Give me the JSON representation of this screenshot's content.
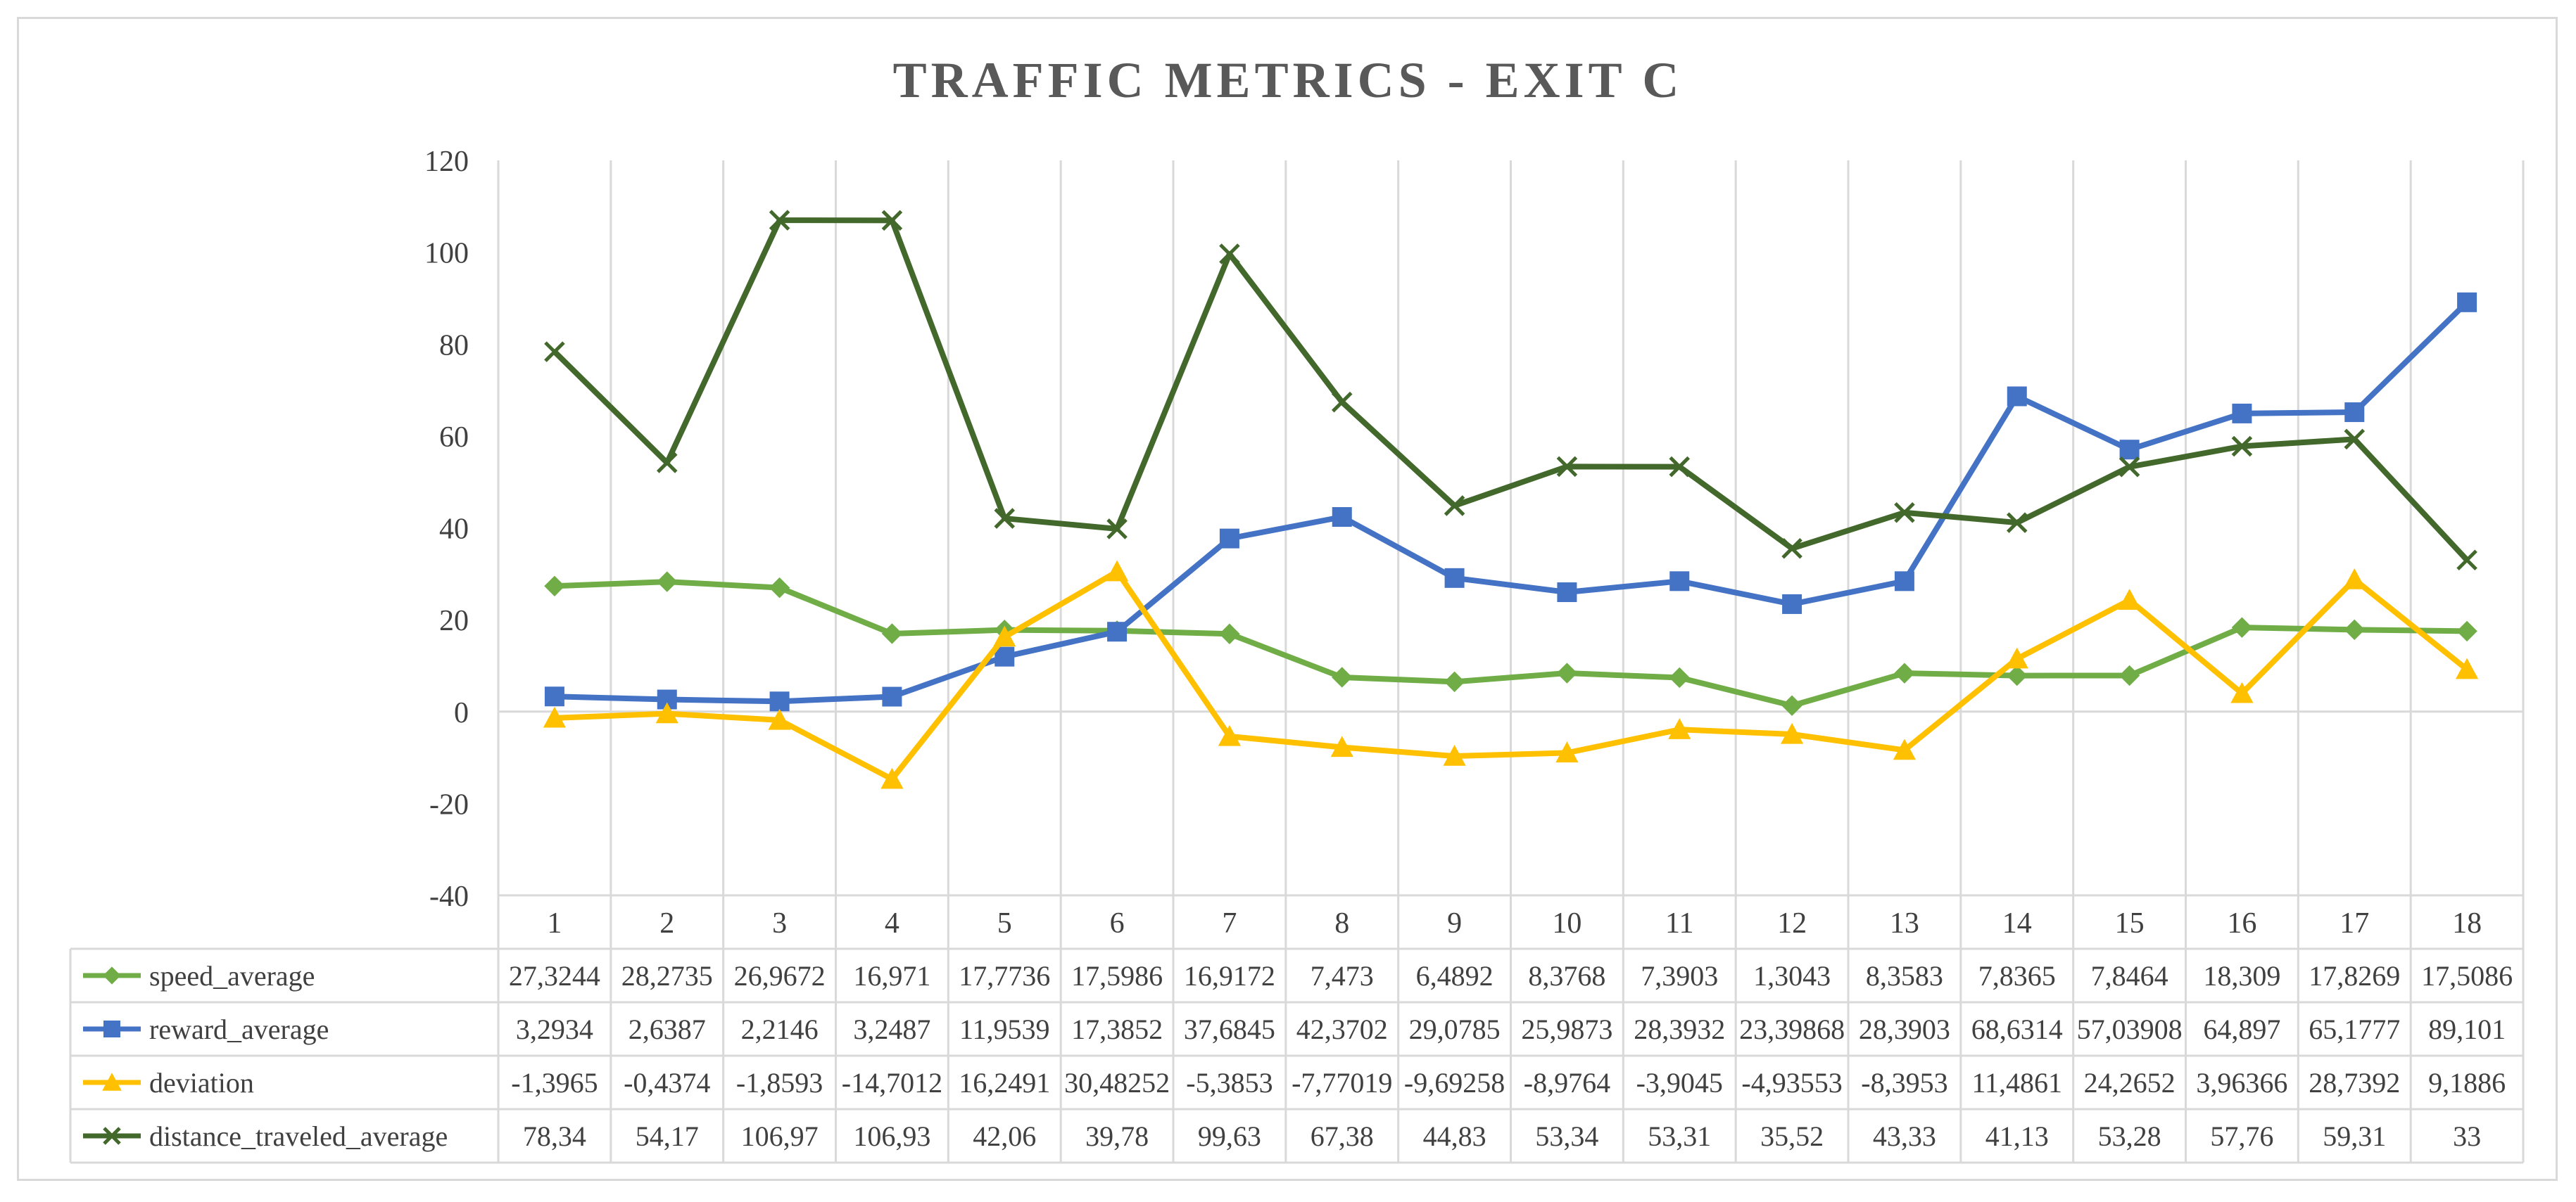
{
  "chart_data": {
    "type": "line",
    "title": "TRAFFIC METRICS - EXIT C",
    "xlabel": "",
    "ylabel": "",
    "ylim": [
      -40,
      120
    ],
    "y_ticks": [
      -40,
      -20,
      0,
      20,
      40,
      60,
      80,
      100,
      120
    ],
    "y_tick_labels": [
      "-40",
      "-20",
      "0",
      "20",
      "40",
      "60",
      "80",
      "100",
      "120"
    ],
    "grid": "vertical",
    "legend": "data-table-left",
    "categories": [
      "1",
      "2",
      "3",
      "4",
      "5",
      "6",
      "7",
      "8",
      "9",
      "10",
      "11",
      "12",
      "13",
      "14",
      "15",
      "16",
      "17",
      "18"
    ],
    "series": [
      {
        "name": "speed_average",
        "color": "#70ad47",
        "marker": "diamond",
        "values": [
          27.3244,
          28.2735,
          26.9672,
          16.971,
          17.7736,
          17.5986,
          16.9172,
          7.473,
          6.4892,
          8.3768,
          7.3903,
          1.3043,
          8.3583,
          7.8365,
          7.8464,
          18.309,
          17.8269,
          17.5086
        ],
        "labels": [
          "27,3244",
          "28,2735",
          "26,9672",
          "16,971",
          "17,7736",
          "17,5986",
          "16,9172",
          "7,473",
          "6,4892",
          "8,3768",
          "7,3903",
          "1,3043",
          "8,3583",
          "7,8365",
          "7,8464",
          "18,309",
          "17,8269",
          "17,5086"
        ]
      },
      {
        "name": "reward_average",
        "color": "#4472c4",
        "marker": "square",
        "values": [
          3.2934,
          2.6387,
          2.2146,
          3.2487,
          11.9539,
          17.3852,
          37.6845,
          42.3702,
          29.0785,
          25.9873,
          28.3932,
          23.39868,
          28.3903,
          68.6314,
          57.03908,
          64.897,
          65.1777,
          89.101
        ],
        "labels": [
          "3,2934",
          "2,6387",
          "2,2146",
          "3,2487",
          "11,9539",
          "17,3852",
          "37,6845",
          "42,3702",
          "29,0785",
          "25,9873",
          "28,3932",
          "23,39868",
          "28,3903",
          "68,6314",
          "57,03908",
          "64,897",
          "65,1777",
          "89,101"
        ]
      },
      {
        "name": "deviation",
        "color": "#ffc000",
        "marker": "triangle",
        "values": [
          -1.3965,
          -0.4374,
          -1.8593,
          -14.7012,
          16.2491,
          30.48252,
          -5.3853,
          -7.77019,
          -9.69258,
          -8.9764,
          -3.9045,
          -4.93553,
          -8.3953,
          11.4861,
          24.2652,
          3.96366,
          28.7392,
          9.1886
        ],
        "labels": [
          "-1,3965",
          "-0,4374",
          "-1,8593",
          "-14,7012",
          "16,2491",
          "30,48252",
          "-5,3853",
          "-7,77019",
          "-9,69258",
          "-8,9764",
          "-3,9045",
          "-4,93553",
          "-8,3953",
          "11,4861",
          "24,2652",
          "3,96366",
          "28,7392",
          "9,1886"
        ]
      },
      {
        "name": "distance_traveled_average",
        "color": "#43682b",
        "marker": "x",
        "values": [
          78.34,
          54.17,
          106.97,
          106.93,
          42.06,
          39.78,
          99.63,
          67.38,
          44.83,
          53.34,
          53.31,
          35.52,
          43.33,
          41.13,
          53.28,
          57.76,
          59.31,
          33
        ],
        "labels": [
          "78,34",
          "54,17",
          "106,97",
          "106,93",
          "42,06",
          "39,78",
          "99,63",
          "67,38",
          "44,83",
          "53,34",
          "53,31",
          "35,52",
          "43,33",
          "41,13",
          "53,28",
          "57,76",
          "59,31",
          "33"
        ]
      }
    ]
  }
}
